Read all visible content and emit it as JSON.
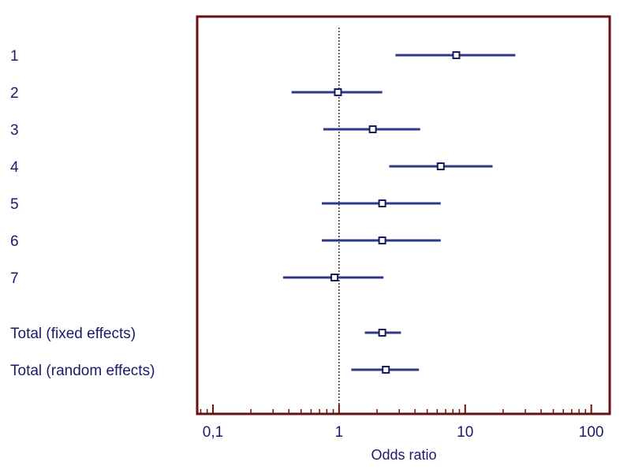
{
  "chart_data": {
    "type": "forest",
    "xlabel": "Odds ratio",
    "x_scale": "log",
    "xlim": [
      0.075,
      140
    ],
    "ticks": [
      {
        "value": 0.1,
        "label": "0,1"
      },
      {
        "value": 1,
        "label": "1"
      },
      {
        "value": 10,
        "label": "10"
      },
      {
        "value": 100,
        "label": "100"
      }
    ],
    "reference_line": 1,
    "studies": [
      {
        "label": "1",
        "or": 8.5,
        "ci": [
          2.8,
          25
        ]
      },
      {
        "label": "2",
        "or": 0.98,
        "ci": [
          0.42,
          2.2
        ]
      },
      {
        "label": "3",
        "or": 1.85,
        "ci": [
          0.75,
          4.4
        ]
      },
      {
        "label": "4",
        "or": 6.4,
        "ci": [
          2.5,
          16.5
        ]
      },
      {
        "label": "5",
        "or": 2.2,
        "ci": [
          0.73,
          6.4
        ]
      },
      {
        "label": "6",
        "or": 2.2,
        "ci": [
          0.73,
          6.4
        ]
      },
      {
        "label": "7",
        "or": 0.92,
        "ci": [
          0.36,
          2.25
        ]
      }
    ],
    "totals": [
      {
        "label": "Total (fixed effects)",
        "or": 2.2,
        "ci": [
          1.6,
          3.1
        ]
      },
      {
        "label": "Total (random effects)",
        "or": 2.35,
        "ci": [
          1.25,
          4.3
        ]
      }
    ],
    "colors": {
      "frame": "#6b0f0f",
      "marks": "#2e3a87",
      "text": "#1a1a6b"
    }
  }
}
